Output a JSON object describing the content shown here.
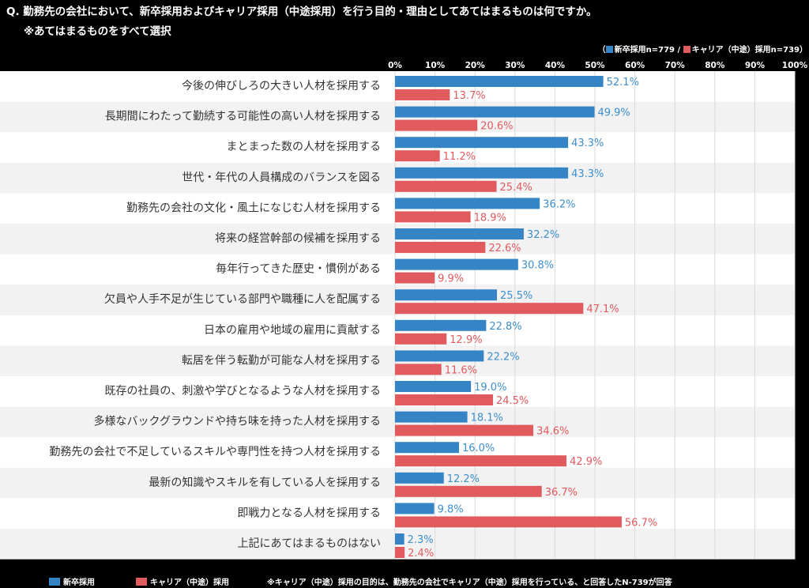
{
  "question": "Q. 勤務先の会社において、新卒採用およびキャリア採用（中途採用）を行う目的・理由としてあてはまるものは何ですか。",
  "note": "※あてはまるものをすべて選択",
  "legend_top": {
    "open": "（",
    "new_grad": "新卒採用n=779",
    "sep": "/",
    "career": "キャリア（中途）採用n=739",
    "close": "）"
  },
  "footer": {
    "new_grad": "新卒採用",
    "career": "キャリア（中途）採用",
    "note": "※キャリア（中途）採用の目的は、勤務先の会社でキャリア（中途）採用を行っている、と回答したN-739が回答"
  },
  "colors": {
    "new_grad": "#3484c6",
    "career": "#e15a5e",
    "label_blue": "#3b8fce",
    "label_red": "#e15a5e"
  },
  "chart_data": {
    "type": "bar",
    "orientation": "horizontal",
    "xlim": [
      0,
      100
    ],
    "ticks": [
      "0%",
      "10%",
      "20%",
      "30%",
      "40%",
      "50%",
      "60%",
      "70%",
      "80%",
      "90%",
      "100%"
    ],
    "grid": true,
    "categories": [
      "今後の伸びしろの大きい人材を採用する",
      "長期間にわたって勤続する可能性の高い人材を採用する",
      "まとまった数の人材を採用する",
      "世代・年代の人員構成のバランスを図る",
      "勤務先の会社の文化・風土になじむ人材を採用する",
      "将来の経営幹部の候補を採用する",
      "毎年行ってきた歴史・慣例がある",
      "欠員や人手不足が生じている部門や職種に人を配属する",
      "日本の雇用や地域の雇用に貢献する",
      "転居を伴う転勤が可能な人材を採用する",
      "既存の社員の、刺激や学びとなるような人材を採用する",
      "多様なバックグラウンドや持ち味を持った人材を採用する",
      "勤務先の会社で不足しているスキルや専門性を持つ人材を採用する",
      "最新の知識やスキルを有している人を採用する",
      "即戦力となる人材を採用する",
      "上記にあてはまるものはない"
    ],
    "series": [
      {
        "name": "新卒採用",
        "values": [
          52.1,
          49.9,
          43.3,
          43.3,
          36.2,
          32.2,
          30.8,
          25.5,
          22.8,
          22.2,
          19.0,
          18.1,
          16.0,
          12.2,
          9.8,
          2.3
        ],
        "labels": [
          "52.1%",
          "49.9%",
          "43.3%",
          "43.3%",
          "36.2%",
          "32.2%",
          "30.8%",
          "25.5%",
          "22.8%",
          "22.2%",
          "19.0%",
          "18.1%",
          "16.0%",
          "12.2%",
          "9.8%",
          "2.3%"
        ]
      },
      {
        "name": "キャリア（中途）採用",
        "values": [
          13.7,
          20.6,
          11.2,
          25.4,
          18.9,
          22.6,
          9.9,
          47.1,
          12.9,
          11.6,
          24.5,
          34.6,
          42.9,
          36.7,
          56.7,
          2.4
        ],
        "labels": [
          "13.7%",
          "20.6%",
          "11.2%",
          "25.4%",
          "18.9%",
          "22.6%",
          "9.9%",
          "47.1%",
          "12.9%",
          "11.6%",
          "24.5%",
          "34.6%",
          "42.9%",
          "36.7%",
          "56.7%",
          "2.4%"
        ]
      }
    ]
  }
}
